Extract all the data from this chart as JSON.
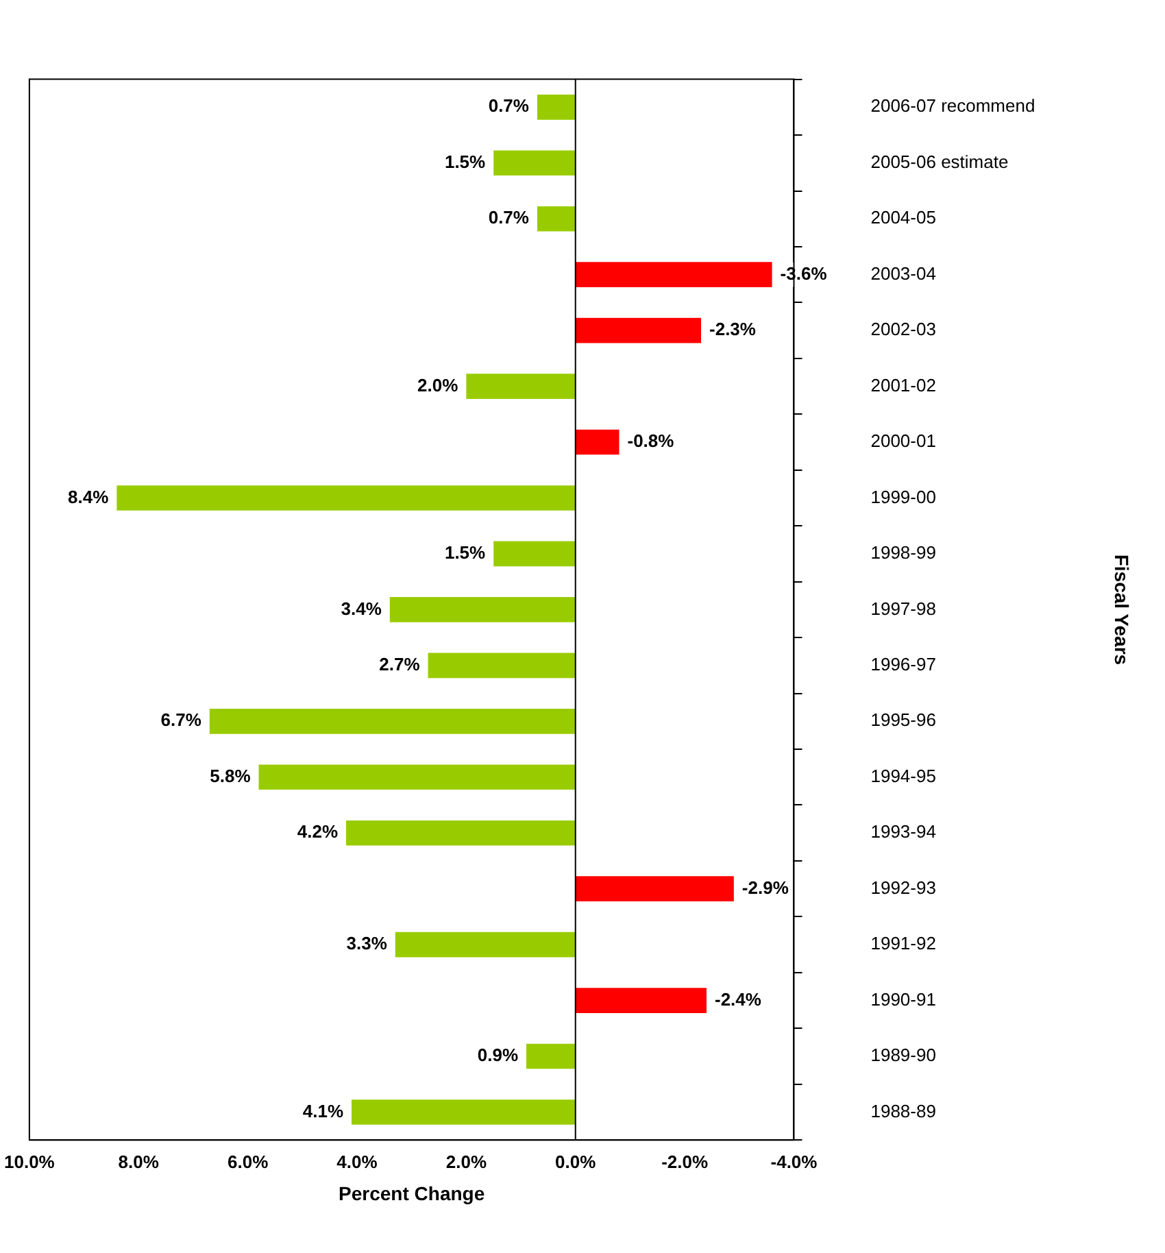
{
  "chart_data": {
    "type": "bar",
    "orientation": "horizontal",
    "xlabel": "Percent Change",
    "ylabel": "Fiscal Years",
    "categories": [
      "2006-07 recommend",
      "2005-06 estimate",
      "2004-05",
      "2003-04",
      "2002-03",
      "2001-02",
      "2000-01",
      "1999-00",
      "1998-99",
      "1997-98",
      "1996-97",
      "1995-96",
      "1994-95",
      "1993-94",
      "1992-93",
      "1991-92",
      "1990-91",
      "1989-90",
      "1988-89"
    ],
    "values": [
      0.7,
      1.5,
      0.7,
      -3.6,
      -2.3,
      2.0,
      -0.8,
      8.4,
      1.5,
      3.4,
      2.7,
      6.7,
      5.8,
      4.2,
      -2.9,
      3.3,
      -2.4,
      0.9,
      4.1
    ],
    "colors": [
      "#99cc00",
      "#99cc00",
      "#99cc00",
      "#ff0000",
      "#ff0000",
      "#99cc00",
      "#ff0000",
      "#99cc00",
      "#99cc00",
      "#99cc00",
      "#99cc00",
      "#99cc00",
      "#99cc00",
      "#99cc00",
      "#ff0000",
      "#99cc00",
      "#ff0000",
      "#99cc00",
      "#99cc00"
    ],
    "value_labels": [
      "0.7%",
      "1.5%",
      "0.7%",
      "-3.6%",
      "-2.3%",
      "2.0%",
      "-0.8%",
      "8.4%",
      "1.5%",
      "3.4%",
      "2.7%",
      "6.7%",
      "5.8%",
      "4.2%",
      "-2.9%",
      "3.3%",
      "-2.4%",
      "0.9%",
      "4.1%"
    ],
    "xlim": [
      10,
      -4
    ],
    "xticks": [
      {
        "value": 10,
        "label": "10.0%"
      },
      {
        "value": 8,
        "label": "8.0%"
      },
      {
        "value": 6,
        "label": "6.0%"
      },
      {
        "value": 4,
        "label": "4.0%"
      },
      {
        "value": 2,
        "label": "2.0%"
      },
      {
        "value": 0,
        "label": "0.0%"
      },
      {
        "value": -2,
        "label": "-2.0%"
      },
      {
        "value": -4,
        "label": "-4.0%"
      }
    ],
    "ref_lines": [
      {
        "axis": "x",
        "value": 0,
        "color": "#000000"
      }
    ],
    "grid": false,
    "legend": false
  }
}
